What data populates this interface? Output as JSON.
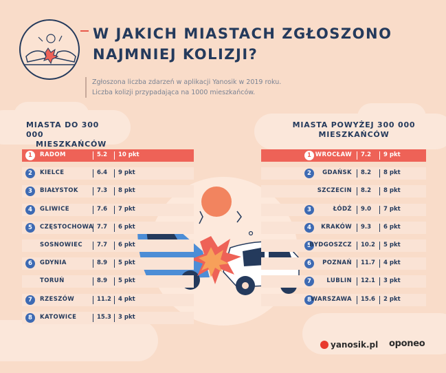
{
  "header": {
    "title_line1": "W JAKICH MIASTACH ZGŁOSZONO",
    "title_line2": "NAJMNIEJ KOLIZJI?",
    "subtitle_line1": "Zgłoszona liczba zdarzeń w aplikacji Yanosik w 2019 roku.",
    "subtitle_line2": "Liczba kolizji przypadająca na 1000 mieszkańców."
  },
  "left_column": {
    "heading_line1": "MIASTA DO 300 000",
    "heading_line2": "MIESZKAŃCÓW",
    "rows": [
      {
        "rank": "1",
        "city": "RADOM",
        "value": "5.2",
        "unit": "10 pkt",
        "highlight": true
      },
      {
        "rank": "2",
        "city": "KIELCE",
        "value": "6.4",
        "unit": "9 pkt"
      },
      {
        "rank": "3",
        "city": "BIAŁYSTOK",
        "value": "7.3",
        "unit": "8 pkt"
      },
      {
        "rank": "4",
        "city": "GLIWICE",
        "value": "7.6",
        "unit": "7 pkt"
      },
      {
        "rank": "5",
        "city": "CZĘSTOCHOWA",
        "value": "7.7",
        "unit": "6 pkt"
      },
      {
        "rank": "",
        "city": "SOSNOWIEC",
        "value": "7.7",
        "unit": "6 pkt"
      },
      {
        "rank": "6",
        "city": "GDYNIA",
        "value": "8.9",
        "unit": "5 pkt"
      },
      {
        "rank": "",
        "city": "TORUŃ",
        "value": "8.9",
        "unit": "5 pkt"
      },
      {
        "rank": "7",
        "city": "RZESZÓW",
        "value": "11.2",
        "unit": "4 pkt"
      },
      {
        "rank": "8",
        "city": "KATOWICE",
        "value": "15.3",
        "unit": "3 pkt"
      }
    ]
  },
  "right_column": {
    "heading_line1": "MIASTA POWYŻEJ 300 000",
    "heading_line2": "MIESZKAŃCÓW",
    "rows": [
      {
        "rank": "1",
        "city": "WROCŁAW",
        "value": "7.2",
        "unit": "9 pkt",
        "highlight": true
      },
      {
        "rank": "2",
        "city": "GDAŃSK",
        "value": "8.2",
        "unit": "8 pkt"
      },
      {
        "rank": "",
        "city": "SZCZECIN",
        "value": "8.2",
        "unit": "8 pkt"
      },
      {
        "rank": "3",
        "city": "ŁÓDŹ",
        "value": "9.0",
        "unit": "7 pkt"
      },
      {
        "rank": "4",
        "city": "KRAKÓW",
        "value": "9.3",
        "unit": "6 pkt"
      },
      {
        "rank": "5",
        "city": "BYDGOSZCZ",
        "value": "10.2",
        "unit": "5 pkt"
      },
      {
        "rank": "6",
        "city": "POZNAŃ",
        "value": "11.7",
        "unit": "4 pkt"
      },
      {
        "rank": "7",
        "city": "LUBLIN",
        "value": "12.1",
        "unit": "3 pkt"
      },
      {
        "rank": "8",
        "city": "WARSZAWA",
        "value": "15.6",
        "unit": "2 pkt"
      }
    ]
  },
  "footer": {
    "logo1": "yanosik.pl",
    "logo2": "oponeo"
  },
  "colors": {
    "background": "#f9dcc9",
    "highlight": "#ee6257",
    "navy": "#243a5c",
    "badge_blue": "#3d6ab3",
    "car_blue": "#4c8dd6",
    "sun": "#f2845f"
  }
}
